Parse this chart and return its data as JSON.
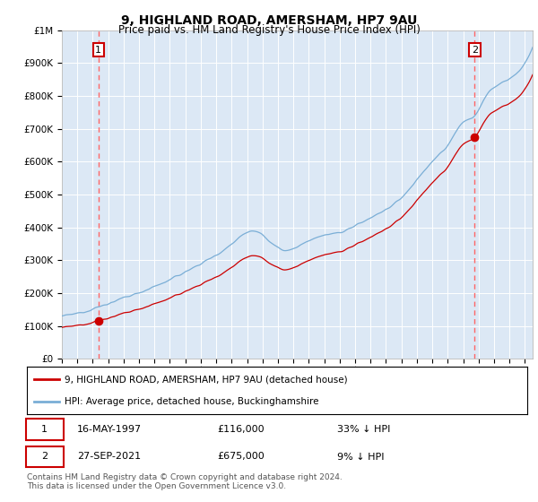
{
  "title": "9, HIGHLAND ROAD, AMERSHAM, HP7 9AU",
  "subtitle": "Price paid vs. HM Land Registry's House Price Index (HPI)",
  "red_label": "9, HIGHLAND ROAD, AMERSHAM, HP7 9AU (detached house)",
  "blue_label": "HPI: Average price, detached house, Buckinghamshire",
  "annotation1_date": "16-MAY-1997",
  "annotation1_price": 116000,
  "annotation1_pct": "33% ↓ HPI",
  "annotation1_year": 1997.37,
  "annotation2_date": "27-SEP-2021",
  "annotation2_price": 675000,
  "annotation2_pct": "9% ↓ HPI",
  "annotation2_year": 2021.74,
  "footer": "Contains HM Land Registry data © Crown copyright and database right 2024.\nThis data is licensed under the Open Government Licence v3.0.",
  "ylim": [
    0,
    1000000
  ],
  "xlim_start": 1995.0,
  "xlim_end": 2025.5,
  "plot_bg_color": "#dce8f5",
  "red_color": "#cc0000",
  "blue_color": "#7aaed6",
  "annotation_box_color": "#cc0000",
  "dashed_line_color": "#ff6666"
}
